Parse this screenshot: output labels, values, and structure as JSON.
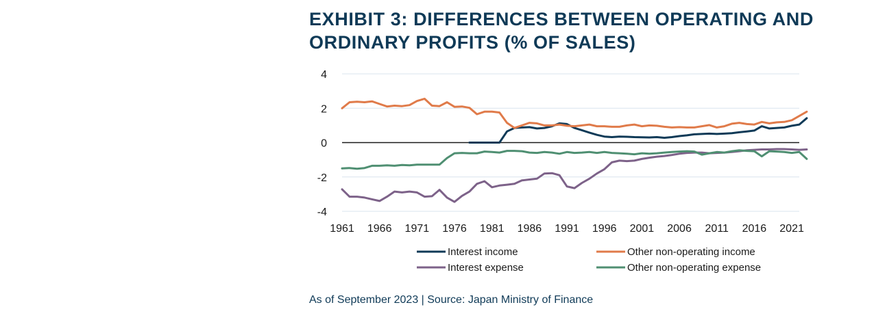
{
  "title_line1": "EXHIBIT 3: DIFFERENCES BETWEEN OPERATING AND",
  "title_line2": "ORDINARY PROFITS (% OF SALES)",
  "source": "As of September 2023 | Source: Japan Ministry of Finance",
  "chart_data": {
    "type": "line",
    "title": "EXHIBIT 3: DIFFERENCES BETWEEN OPERATING AND ORDINARY PROFITS (% OF SALES)",
    "xlabel": "",
    "ylabel": "",
    "xlim": [
      1961,
      2022
    ],
    "ylim": [
      -4,
      4
    ],
    "yticks": [
      4,
      2,
      0,
      -2,
      -4
    ],
    "xticks": [
      1961,
      1966,
      1971,
      1976,
      1981,
      1986,
      1991,
      1996,
      2001,
      2006,
      2011,
      2016,
      2021
    ],
    "grid": "horizontal",
    "legend_position": "bottom",
    "series": [
      {
        "name": "Interest income",
        "color": "#0f3a57",
        "start": 1978,
        "values": [
          0.0,
          0.0,
          0.0,
          0.0,
          0.0,
          0.65,
          0.85,
          0.88,
          0.9,
          0.82,
          0.85,
          0.95,
          1.12,
          1.08,
          0.85,
          0.72,
          0.58,
          0.45,
          0.35,
          0.32,
          0.35,
          0.34,
          0.32,
          0.31,
          0.3,
          0.32,
          0.28,
          0.32,
          0.38,
          0.42,
          0.48,
          0.5,
          0.52,
          0.5,
          0.52,
          0.55,
          0.6,
          0.65,
          0.7,
          0.95,
          0.82,
          0.85,
          0.88,
          0.98,
          1.05,
          1.42
        ]
      },
      {
        "name": "Other non-operating income",
        "color": "#e07b4a",
        "start": 1961,
        "values": [
          2.0,
          2.35,
          2.38,
          2.35,
          2.4,
          2.25,
          2.1,
          2.15,
          2.12,
          2.18,
          2.42,
          2.55,
          2.15,
          2.12,
          2.35,
          2.08,
          2.1,
          2.02,
          1.65,
          1.8,
          1.8,
          1.75,
          1.15,
          0.85,
          1.0,
          1.15,
          1.12,
          1.0,
          1.0,
          1.05,
          0.98,
          0.95,
          1.0,
          1.05,
          0.95,
          0.95,
          0.92,
          0.92,
          1.0,
          1.05,
          0.95,
          1.0,
          0.98,
          0.92,
          0.88,
          0.9,
          0.88,
          0.88,
          0.95,
          1.02,
          0.88,
          0.95,
          1.1,
          1.15,
          1.08,
          1.05,
          1.2,
          1.12,
          1.18,
          1.2,
          1.3,
          1.55,
          1.8
        ]
      },
      {
        "name": "Interest expense",
        "color": "#7d6289",
        "start": 1961,
        "values": [
          -2.72,
          -3.15,
          -3.15,
          -3.2,
          -3.3,
          -3.4,
          -3.15,
          -2.85,
          -2.9,
          -2.85,
          -2.9,
          -3.15,
          -3.12,
          -2.75,
          -3.2,
          -3.45,
          -3.1,
          -2.85,
          -2.4,
          -2.25,
          -2.6,
          -2.5,
          -2.45,
          -2.4,
          -2.2,
          -2.15,
          -2.1,
          -1.8,
          -1.78,
          -1.9,
          -2.55,
          -2.65,
          -2.35,
          -2.1,
          -1.8,
          -1.55,
          -1.15,
          -1.05,
          -1.08,
          -1.05,
          -0.95,
          -0.88,
          -0.82,
          -0.78,
          -0.72,
          -0.65,
          -0.6,
          -0.58,
          -0.58,
          -0.62,
          -0.6,
          -0.58,
          -0.55,
          -0.5,
          -0.45,
          -0.42,
          -0.4,
          -0.4,
          -0.38,
          -0.38,
          -0.4,
          -0.42,
          -0.4
        ]
      },
      {
        "name": "Other non-operating expense",
        "color": "#4f8f72",
        "start": 1961,
        "values": [
          -1.5,
          -1.48,
          -1.52,
          -1.48,
          -1.35,
          -1.35,
          -1.32,
          -1.35,
          -1.3,
          -1.32,
          -1.28,
          -1.28,
          -1.28,
          -1.28,
          -0.9,
          -0.62,
          -0.6,
          -0.62,
          -0.62,
          -0.52,
          -0.55,
          -0.58,
          -0.48,
          -0.48,
          -0.5,
          -0.58,
          -0.6,
          -0.55,
          -0.58,
          -0.65,
          -0.55,
          -0.6,
          -0.58,
          -0.55,
          -0.6,
          -0.55,
          -0.6,
          -0.62,
          -0.65,
          -0.68,
          -0.62,
          -0.65,
          -0.62,
          -0.58,
          -0.55,
          -0.52,
          -0.5,
          -0.52,
          -0.7,
          -0.62,
          -0.55,
          -0.58,
          -0.5,
          -0.45,
          -0.48,
          -0.5,
          -0.8,
          -0.5,
          -0.52,
          -0.55,
          -0.6,
          -0.55,
          -0.95
        ]
      }
    ]
  }
}
